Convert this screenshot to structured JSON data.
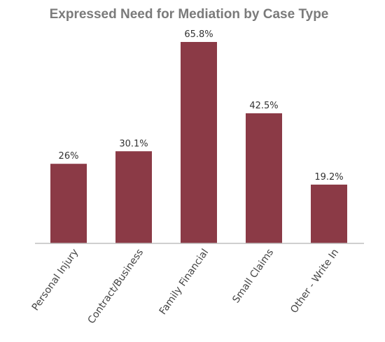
{
  "chart_data": {
    "type": "bar",
    "title": "Expressed Need for Mediation by Case Type",
    "categories": [
      "Personal Injury",
      "Contract/Business",
      "Family Financial",
      "Small Claims",
      "Other - Write In"
    ],
    "values": [
      26,
      30.1,
      65.8,
      42.5,
      19.2
    ],
    "data_labels": [
      "26%",
      "30.1%",
      "65.8%",
      "42.5%",
      "19.2%"
    ],
    "ylim": [
      0,
      70
    ],
    "grid": false,
    "legend": "none",
    "colors": {
      "bar": "#8b3a46",
      "axis": "#bfbfbf"
    }
  }
}
